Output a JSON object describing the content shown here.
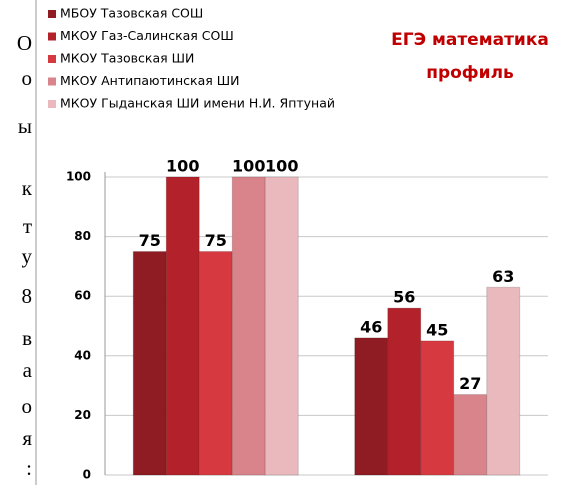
{
  "side_text": [
    "О",
    "о",
    "ы",
    "к",
    "т",
    "у",
    "8",
    "в",
    "а",
    "о",
    "я",
    ":"
  ],
  "chart_data": {
    "type": "bar",
    "title": [
      "ЕГЭ  математика",
      "профиль"
    ],
    "categories": [
      null,
      null
    ],
    "series": [
      {
        "name": "МБОУ Тазовская СОШ",
        "color": "#8e1c22",
        "values": [
          75,
          46
        ]
      },
      {
        "name": "МКОУ Газ-Салинская СОШ",
        "color": "#b3222b",
        "values": [
          100,
          56
        ]
      },
      {
        "name": "МКОУ Тазовская ШИ",
        "color": "#d63a40",
        "values": [
          75,
          45
        ]
      },
      {
        "name": "МКОУ Антипаютинская ШИ",
        "color": "#d9848b",
        "values": [
          100,
          27
        ]
      },
      {
        "name": "МКОУ Гыданская ШИ имени Н.И. Яптунай",
        "color": "#e9b9bd",
        "values": [
          100,
          63
        ]
      }
    ],
    "ylim": [
      0,
      100
    ],
    "yticks": [
      0,
      20,
      40,
      60,
      80,
      100
    ],
    "grid": true,
    "legend": "top-left"
  }
}
